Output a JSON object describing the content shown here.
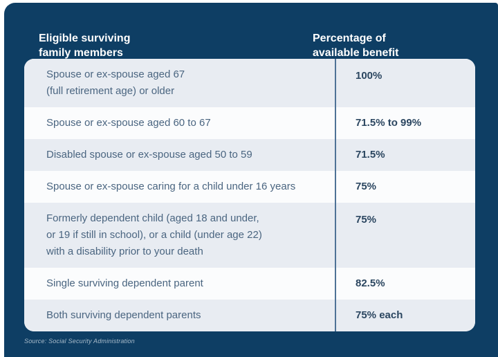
{
  "page": {
    "background": "#ffffff",
    "panel_color": "#0e3e64",
    "shaded_row_color": "#e8ecf2",
    "plain_row_color": "#fbfcfd",
    "divider_color": "#4e7296",
    "member_text_color": "#4a6580",
    "benefit_text_color": "#2b4660",
    "header_text_color": "#ffffff"
  },
  "header": {
    "members_label": "Eligible surviving\nfamily members",
    "benefit_label": "Percentage of\navailable benefit"
  },
  "table": {
    "rows": [
      {
        "member": "Spouse or ex-spouse aged 67\n(full retirement age) or older",
        "benefit": "100%",
        "shaded": true
      },
      {
        "member": "Spouse or ex-spouse aged 60 to 67",
        "benefit": "71.5% to 99%",
        "shaded": false
      },
      {
        "member": "Disabled spouse or ex-spouse aged 50 to 59",
        "benefit": "71.5%",
        "shaded": true
      },
      {
        "member": "Spouse or ex-spouse caring for a child under 16 years",
        "benefit": "75%",
        "shaded": false
      },
      {
        "member": "Formerly dependent child (aged 18 and under,\nor 19 if still in school), or a child (under age 22)\nwith a disability prior to your death",
        "benefit": "75%",
        "shaded": true
      },
      {
        "member": "Single surviving dependent parent",
        "benefit": "82.5%",
        "shaded": false
      },
      {
        "member": "Both surviving dependent parents",
        "benefit": "75% each",
        "shaded": true
      }
    ]
  },
  "footer": {
    "source": "Source: Social Security Administration"
  },
  "chart_data": {
    "type": "table",
    "title": "",
    "columns": [
      "Eligible surviving family members",
      "Percentage of available benefit"
    ],
    "rows": [
      [
        "Spouse or ex-spouse aged 67 (full retirement age) or older",
        "100%"
      ],
      [
        "Spouse or ex-spouse aged 60 to 67",
        "71.5% to 99%"
      ],
      [
        "Disabled spouse or ex-spouse aged 50 to 59",
        "71.5%"
      ],
      [
        "Spouse or ex-spouse caring for a child under 16 years",
        "75%"
      ],
      [
        "Formerly dependent child (aged 18 and under, or 19 if still in school), or a child (under age 22) with a disability prior to your death",
        "75%"
      ],
      [
        "Single surviving dependent parent",
        "82.5%"
      ],
      [
        "Both surviving dependent parents",
        "75% each"
      ]
    ],
    "source": "Source: Social Security Administration"
  }
}
